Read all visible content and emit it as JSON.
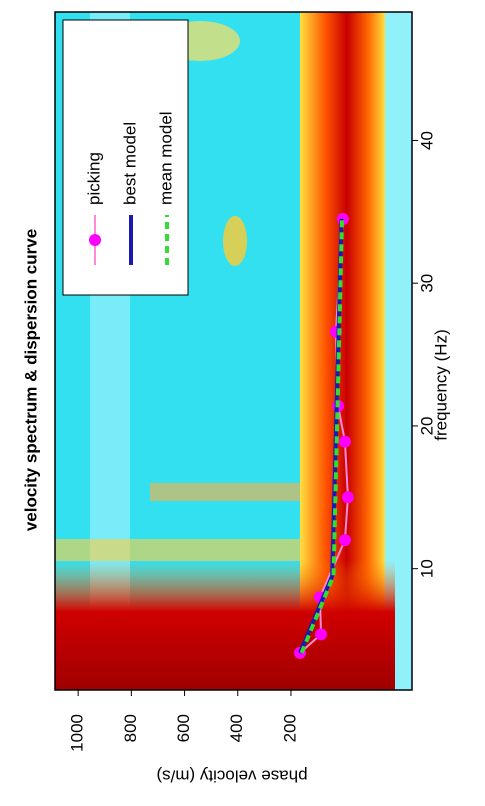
{
  "chart_data": {
    "type": "line",
    "title": "velocity spectrum & dispersion curve",
    "x_label": "frequency (Hz)",
    "y_label": "phase velocity (m/s)",
    "xlim": [
      1.5,
      49
    ],
    "ylim": [
      -255,
      1087
    ],
    "xticks": [
      10,
      20,
      30,
      40
    ],
    "yticks": [
      200,
      400,
      600,
      800,
      1000
    ],
    "legend": "top-right",
    "series": [
      {
        "name": "picking",
        "color": "#ff00ff",
        "line_color": "#ff88dd",
        "marker": "circle",
        "x": [
          4.1,
          5.4,
          8.0,
          12.0,
          15.0,
          18.9,
          21.4,
          26.6,
          34.5
        ],
        "values": [
          166,
          87,
          91,
          -3,
          -14,
          -3,
          23,
          31,
          5
        ]
      },
      {
        "name": "best model",
        "color": "#1a1ab0",
        "dashed": false,
        "x": [
          4.1,
          9.5,
          34.5
        ],
        "values": [
          166,
          45,
          10
        ]
      },
      {
        "name": "mean model",
        "color": "#33dd33",
        "dashed": true,
        "x": [
          4.1,
          9.5,
          34.5
        ],
        "values": [
          160,
          40,
          8
        ]
      }
    ]
  }
}
